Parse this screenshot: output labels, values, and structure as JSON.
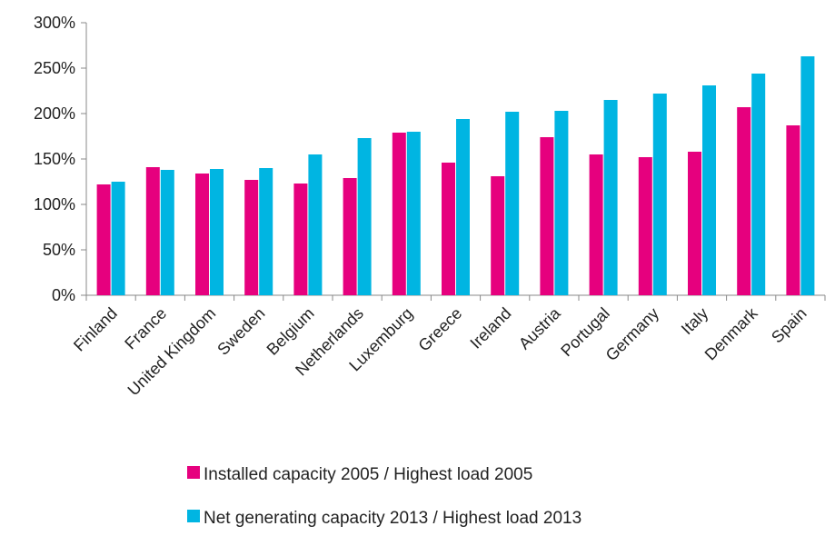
{
  "chart_data": {
    "type": "bar",
    "categories": [
      "Finland",
      "France",
      "United Kingdom",
      "Sweden",
      "Belgium",
      "Netherlands",
      "Luxemburg",
      "Greece",
      "Ireland",
      "Austria",
      "Portugal",
      "Germany",
      "Italy",
      "Denmark",
      "Spain"
    ],
    "series": [
      {
        "name": "Installed capacity 2005 / Highest load 2005",
        "color": "#e6007e",
        "values": [
          122,
          141,
          134,
          127,
          123,
          129,
          179,
          146,
          131,
          174,
          155,
          152,
          158,
          207,
          187
        ]
      },
      {
        "name": "Net generating capacity 2013 / Highest load 2013",
        "color": "#00b5e2",
        "values": [
          125,
          138,
          139,
          140,
          155,
          173,
          180,
          194,
          202,
          203,
          215,
          222,
          231,
          244,
          263
        ]
      }
    ],
    "ylim": [
      0,
      300
    ],
    "yticks": [
      "0%",
      "50%",
      "100%",
      "150%",
      "200%",
      "250%",
      "300%"
    ],
    "legend_position": "bottom",
    "grid": false
  }
}
